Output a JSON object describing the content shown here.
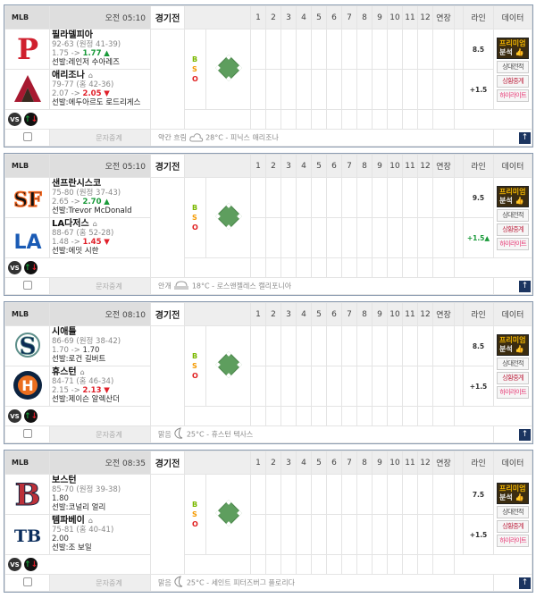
{
  "headers": {
    "league": "MLB",
    "status": "경기전",
    "innings": [
      "1",
      "2",
      "3",
      "4",
      "5",
      "6",
      "7",
      "8",
      "9",
      "10",
      "11",
      "12",
      "연장"
    ],
    "line": "라인",
    "data": "데이터"
  },
  "buttons": {
    "premium_1": "프리미엄",
    "premium_2": "분석",
    "h2h": "상대전적",
    "live": "상황중계",
    "highlight": "하이라이트",
    "text_relay": "문자중계",
    "vs": "VS",
    "top": "↑"
  },
  "bso": [
    "B",
    "S",
    "O"
  ],
  "games": [
    {
      "time": "오전 05:10",
      "away": {
        "name": "필라델피아",
        "logo": "phillies-logo",
        "record": "92-63 (원정 41-39)",
        "odds_from": "1.75 ->",
        "odds_to": "1.77",
        "trend": "up",
        "starter": "선발:레인저 수아레즈"
      },
      "home": {
        "name": "애리조나",
        "logo": "diamondbacks-logo",
        "record": "79-77 (홈 42-36)",
        "odds_from": "2.07 ->",
        "odds_to": "2.05",
        "trend": "down",
        "starter": "선발:에두아르도 로드리게스"
      },
      "line_total": "8.5",
      "line_handicap": "+1.5",
      "handicap_trend": "none",
      "weather": "약간 흐림",
      "weather_icon": "partly-cloudy-icon",
      "temp_loc": "28°C - 피닉스 애리조나"
    },
    {
      "time": "오전 05:10",
      "away": {
        "name": "샌프란시스코",
        "logo": "giants-logo",
        "record": "75-80 (원정 37-43)",
        "odds_from": "2.65 ->",
        "odds_to": "2.70",
        "trend": "up",
        "starter": "선발:Trevor McDonald"
      },
      "home": {
        "name": "LA다저스",
        "logo": "dodgers-logo",
        "record": "88-67 (홈 52-28)",
        "odds_from": "1.48 ->",
        "odds_to": "1.45",
        "trend": "down",
        "starter": "선발:에밋 시한"
      },
      "line_total": "9.5",
      "line_handicap": "+1.5",
      "handicap_trend": "up",
      "weather": "안개",
      "weather_icon": "fog-icon",
      "temp_loc": "18°C - 로스앤젤레스 캘리포니아"
    },
    {
      "time": "오전 08:10",
      "away": {
        "name": "시애틀",
        "logo": "mariners-logo",
        "record": "86-69 (원정 38-42)",
        "odds_from": "1.70 ->",
        "odds_to": "1.70",
        "trend": "same",
        "starter": "선발:로건 길버트"
      },
      "home": {
        "name": "휴스턴",
        "logo": "astros-logo",
        "record": "84-71 (홈 46-34)",
        "odds_from": "2.15 ->",
        "odds_to": "2.13",
        "trend": "down",
        "starter": "선발:제이슨 알렉산더"
      },
      "line_total": "8.5",
      "line_handicap": "+1.5",
      "handicap_trend": "none",
      "weather": "맑음",
      "weather_icon": "moon-icon",
      "temp_loc": "25°C - 휴스턴 텍사스"
    },
    {
      "time": "오전 08:35",
      "away": {
        "name": "보스턴",
        "logo": "redsox-logo",
        "record": "85-70 (원정 39-38)",
        "odds_from": "",
        "odds_to": "1.80",
        "trend": "none",
        "starter": "선발:코널리 얼리"
      },
      "home": {
        "name": "템파베이",
        "logo": "rays-logo",
        "record": "75-81 (홈 40-41)",
        "odds_from": "",
        "odds_to": "2.00",
        "trend": "none",
        "starter": "선발:조 보일"
      },
      "line_total": "7.5",
      "line_handicap": "+1.5",
      "handicap_trend": "none",
      "weather": "맑음",
      "weather_icon": "moon-icon",
      "temp_loc": "25°C - 세인트 피터즈버그 플로리다"
    }
  ],
  "colors": {
    "up": "#1a9a3a",
    "down": "#e0202a",
    "frame": "#8a9bb0",
    "premium_bg": "#3b2c10",
    "premium_text": "#f0b400"
  }
}
